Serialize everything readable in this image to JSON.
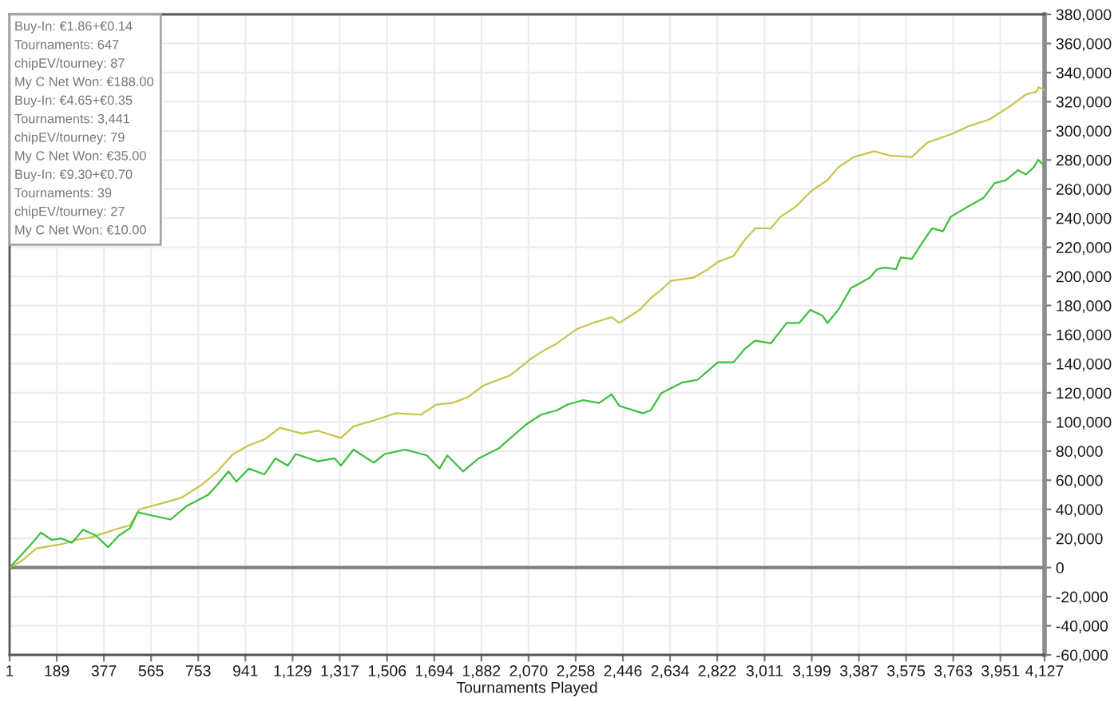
{
  "chart_data": {
    "type": "line",
    "xlabel": "Tournaments Played",
    "series": [
      {
        "color": "#c8c44c",
        "x": [
          1,
          45,
          107,
          169,
          207,
          269,
          331,
          419,
          481,
          518,
          606,
          687,
          768,
          830,
          892,
          955,
          1017,
          1079,
          1167,
          1229,
          1322,
          1372,
          1453,
          1541,
          1640,
          1703,
          1765,
          1827,
          1890,
          1996,
          2077,
          2120,
          2183,
          2264,
          2326,
          2401,
          2432,
          2513,
          2557,
          2600,
          2638,
          2725,
          2787,
          2825,
          2887,
          2931,
          2974,
          3036,
          3074,
          3136,
          3199,
          3261,
          3305,
          3367,
          3448,
          3510,
          3598,
          3660,
          3760,
          3822,
          3909,
          3990,
          4053,
          4096,
          4102,
          4127
        ],
        "values": [
          0,
          4000,
          13000,
          15000,
          16000,
          19000,
          21000,
          26000,
          29000,
          40000,
          44000,
          48000,
          57000,
          66000,
          78000,
          84000,
          88000,
          96000,
          92000,
          94000,
          89000,
          97000,
          101000,
          106000,
          105000,
          112000,
          113000,
          117000,
          125000,
          132000,
          143000,
          148000,
          154000,
          164000,
          168000,
          172000,
          168000,
          177000,
          185000,
          191000,
          197000,
          199000,
          205000,
          210000,
          214000,
          225000,
          233000,
          233000,
          241000,
          248000,
          259000,
          266000,
          275000,
          282000,
          286000,
          283000,
          282000,
          292000,
          298000,
          303000,
          308000,
          317000,
          325000,
          327000,
          330000,
          328000
        ]
      },
      {
        "color": "#3dbf3d",
        "x": [
          1,
          45,
          82,
          126,
          169,
          207,
          250,
          294,
          344,
          394,
          437,
          481,
          512,
          562,
          643,
          705,
          793,
          830,
          874,
          905,
          955,
          1017,
          1061,
          1110,
          1142,
          1229,
          1297,
          1322,
          1372,
          1453,
          1497,
          1578,
          1665,
          1715,
          1746,
          1809,
          1871,
          1952,
          2058,
          2120,
          2183,
          2226,
          2288,
          2351,
          2401,
          2432,
          2525,
          2557,
          2600,
          2681,
          2744,
          2825,
          2887,
          2931,
          2974,
          3036,
          3099,
          3149,
          3193,
          3242,
          3261,
          3305,
          3355,
          3429,
          3460,
          3491,
          3535,
          3554,
          3598,
          3635,
          3679,
          3722,
          3753,
          3822,
          3884,
          3928,
          3972,
          4021,
          4053,
          4084,
          4102,
          4127
        ],
        "values": [
          0,
          8000,
          15000,
          24000,
          19000,
          20000,
          17000,
          26000,
          22000,
          14000,
          22000,
          27000,
          38000,
          36000,
          33000,
          42000,
          50000,
          57000,
          66000,
          59000,
          68000,
          64000,
          75000,
          70000,
          78000,
          73000,
          75000,
          70000,
          81000,
          72000,
          78000,
          81000,
          77000,
          68000,
          77000,
          66000,
          75000,
          82000,
          98000,
          105000,
          108000,
          112000,
          115000,
          113000,
          119000,
          111000,
          106000,
          108000,
          120000,
          127000,
          129000,
          141000,
          141000,
          150000,
          156000,
          154000,
          168000,
          168000,
          177000,
          173000,
          168000,
          177000,
          192000,
          199000,
          205000,
          206000,
          205000,
          213000,
          212000,
          222000,
          233000,
          231000,
          241000,
          248000,
          254000,
          264000,
          266000,
          273000,
          270000,
          275000,
          280000,
          276000
        ]
      }
    ],
    "xlim": [
      1,
      4127
    ],
    "ylim": [
      -60000,
      380000
    ],
    "xticks": [
      1,
      189,
      377,
      565,
      753,
      941,
      {
        "value": 1129,
        "label": "1,129"
      },
      {
        "value": 1317,
        "label": "1,317"
      },
      {
        "value": 1506,
        "label": "1,506"
      },
      {
        "value": 1694,
        "label": "1,694"
      },
      {
        "value": 1882,
        "label": "1,882"
      },
      {
        "value": 2070,
        "label": "2,070"
      },
      {
        "value": 2258,
        "label": "2,258"
      },
      {
        "value": 2446,
        "label": "2,446"
      },
      {
        "value": 2634,
        "label": "2,634"
      },
      {
        "value": 2822,
        "label": "2,822"
      },
      {
        "value": 3011,
        "label": "3,011"
      },
      {
        "value": 3199,
        "label": "3,199"
      },
      {
        "value": 3387,
        "label": "3,387"
      },
      {
        "value": 3575,
        "label": "3,575"
      },
      {
        "value": 3763,
        "label": "3,763"
      },
      {
        "value": 3951,
        "label": "3,951"
      },
      {
        "value": 4127,
        "label": "4,127"
      }
    ],
    "yticks": [
      {
        "value": -60000,
        "label": "-60,000"
      },
      {
        "value": -40000,
        "label": "-40,000"
      },
      {
        "value": -20000,
        "label": "-20,000"
      },
      0,
      {
        "value": 20000,
        "label": "20,000"
      },
      {
        "value": 40000,
        "label": "40,000"
      },
      {
        "value": 60000,
        "label": "60,000"
      },
      {
        "value": 80000,
        "label": "80,000"
      },
      {
        "value": 100000,
        "label": "100,000"
      },
      {
        "value": 120000,
        "label": "120,000"
      },
      {
        "value": 140000,
        "label": "140,000"
      },
      {
        "value": 160000,
        "label": "160,000"
      },
      {
        "value": 180000,
        "label": "180,000"
      },
      {
        "value": 200000,
        "label": "200,000"
      },
      {
        "value": 220000,
        "label": "220,000"
      },
      {
        "value": 240000,
        "label": "240,000"
      },
      {
        "value": 260000,
        "label": "260,000"
      },
      {
        "value": 280000,
        "label": "280,000"
      },
      {
        "value": 300000,
        "label": "300,000"
      },
      {
        "value": 320000,
        "label": "320,000"
      },
      {
        "value": 340000,
        "label": "340,000"
      },
      {
        "value": 360000,
        "label": "360,000"
      },
      {
        "value": 380000,
        "label": "380,000"
      }
    ],
    "grid": true,
    "ref_lines": [
      {
        "axis": "y",
        "value": 0,
        "color": "#808080"
      }
    ],
    "annotations": [
      "Buy-In: €1.86+€0.14",
      "Tournaments: 647",
      "chipEV/tourney: 87",
      "My C Net Won: €188.00",
      "Buy-In: €4.65+€0.35",
      "Tournaments: 3,441",
      "chipEV/tourney: 79",
      "My C Net Won: €35.00",
      "Buy-In: €9.30+€0.70",
      "Tournaments: 39",
      "chipEV/tourney: 27",
      "My C Net Won: €10.00"
    ]
  }
}
